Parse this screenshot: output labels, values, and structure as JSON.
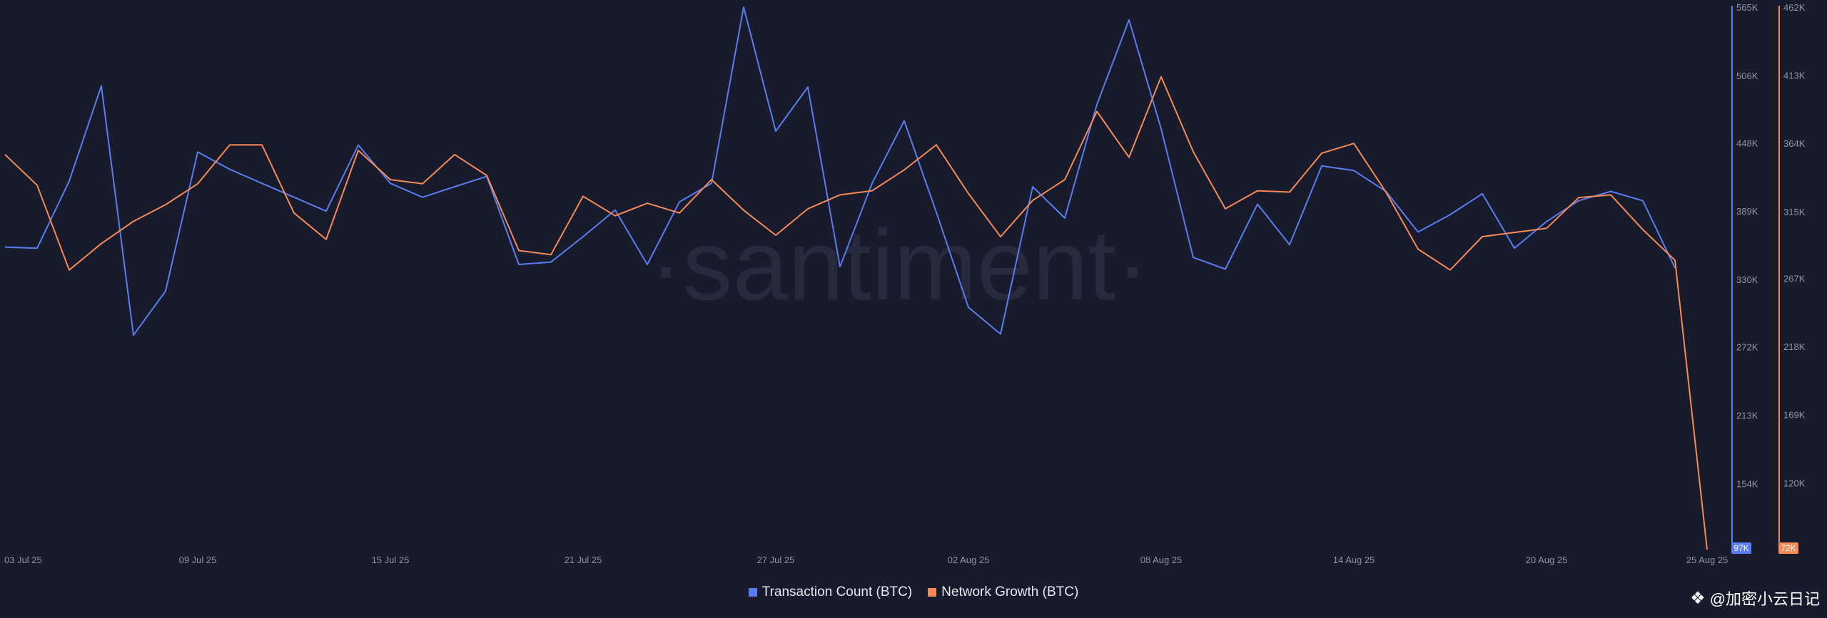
{
  "colors": {
    "background": "#181b2b",
    "series_blue": "#5a7cf0",
    "series_orange": "#f58a57",
    "axis_text": "#8e92a3",
    "brand_watermark": "#262a3c"
  },
  "brand_watermark": "·santiment·",
  "footer_watermark": {
    "icon": "binance-diamond-icon",
    "text": "@加密小云日记"
  },
  "chart_data": {
    "type": "line",
    "x": [
      "03 Jul 25",
      "04 Jul 25",
      "05 Jul 25",
      "06 Jul 25",
      "07 Jul 25",
      "08 Jul 25",
      "09 Jul 25",
      "10 Jul 25",
      "11 Jul 25",
      "12 Jul 25",
      "13 Jul 25",
      "14 Jul 25",
      "15 Jul 25",
      "16 Jul 25",
      "17 Jul 25",
      "18 Jul 25",
      "19 Jul 25",
      "20 Jul 25",
      "21 Jul 25",
      "22 Jul 25",
      "23 Jul 25",
      "24 Jul 25",
      "25 Jul 25",
      "26 Jul 25",
      "27 Jul 25",
      "28 Jul 25",
      "29 Jul 25",
      "30 Jul 25",
      "31 Jul 25",
      "01 Aug 25",
      "02 Aug 25",
      "03 Aug 25",
      "04 Aug 25",
      "05 Aug 25",
      "06 Aug 25",
      "07 Aug 25",
      "08 Aug 25",
      "09 Aug 25",
      "10 Aug 25",
      "11 Aug 25",
      "12 Aug 25",
      "13 Aug 25",
      "14 Aug 25",
      "15 Aug 25",
      "16 Aug 25",
      "17 Aug 25",
      "18 Aug 25",
      "19 Aug 25",
      "20 Aug 25",
      "21 Aug 25",
      "22 Aug 25",
      "23 Aug 25",
      "24 Aug 25",
      "25 Aug 25"
    ],
    "x_tick_labels": [
      "03 Jul 25",
      "09 Jul 25",
      "15 Jul 25",
      "21 Jul 25",
      "27 Jul 25",
      "02 Aug 25",
      "08 Aug 25",
      "14 Aug 25",
      "20 Aug 25",
      "25 Aug 25"
    ],
    "series": [
      {
        "name": "Transaction Count (BTC)",
        "color": "#5a7cf0",
        "axis": "left",
        "last_value_label": "97K",
        "values": [
          358,
          357,
          415,
          497,
          282,
          320,
          440,
          425,
          413,
          401,
          389,
          446,
          413,
          401,
          410,
          419,
          343,
          345,
          367,
          390,
          343,
          397,
          413,
          565,
          458,
          496,
          341,
          413,
          467,
          388,
          306,
          283,
          410,
          383,
          481,
          554,
          460,
          349,
          339,
          395,
          360,
          428,
          424,
          406,
          371,
          386,
          404,
          357,
          380,
          398,
          406,
          398,
          340,
          null
        ]
      },
      {
        "name": "Network Growth (BTC)",
        "color": "#f58a57",
        "axis": "right",
        "last_value_label": "72K",
        "values": [
          356,
          334,
          273,
          292,
          308,
          320,
          335,
          363,
          363,
          314,
          295,
          359,
          338,
          335,
          356,
          341,
          287,
          284,
          326,
          312,
          321,
          314,
          338,
          316,
          298,
          317,
          327,
          330,
          345,
          363,
          328,
          297,
          323,
          338,
          387,
          354,
          412,
          358,
          317,
          330,
          329,
          357,
          364,
          329,
          288,
          273,
          297,
          300,
          303,
          325,
          327,
          302,
          280,
          72
        ]
      }
    ],
    "y_left": {
      "ticks": [
        "154K",
        "213K",
        "272K",
        "330K",
        "389K",
        "448K",
        "506K",
        "565K"
      ],
      "ylim": [
        97,
        565
      ]
    },
    "y_right": {
      "ticks": [
        "120K",
        "169K",
        "218K",
        "267K",
        "315K",
        "364K",
        "413K",
        "462K"
      ],
      "ylim": [
        72,
        462
      ]
    },
    "legend": {
      "placement": "bottom-center",
      "entries": [
        "Transaction Count (BTC)",
        "Network Growth (BTC)"
      ]
    },
    "grid": false
  }
}
